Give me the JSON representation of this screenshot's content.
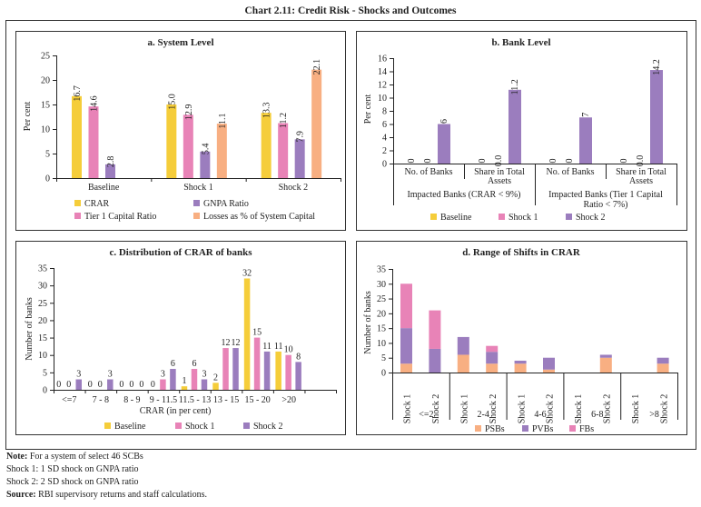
{
  "title": "Chart 2.11: Credit Risk - Shocks and Outcomes",
  "colors": {
    "Baseline": "#F5CD3A",
    "Shock 1": "#E883B7",
    "Shock 2": "#9B7DBE",
    "CRAR": "#F5CD3A",
    "Tier 1  Capital Ratio": "#E883B7",
    "GNPA Ratio": "#9B7DBE",
    "Losses as % of System Capital": "#F8AF82",
    "PSBs": "#F8AF82",
    "PVBs": "#9B7DBE",
    "FBs": "#E883B7"
  },
  "chart_data": [
    {
      "type": "bar",
      "title": "a. System Level",
      "ylabel": "Per cent",
      "xlabel": "",
      "ylim": [
        0,
        25
      ],
      "yticks": [
        "0",
        "5",
        "10",
        "15",
        "20",
        "25"
      ],
      "categories": [
        "Baseline",
        "Shock 1",
        "Shock 2"
      ],
      "series": [
        {
          "name": "CRAR",
          "values": [
            16.7,
            15.0,
            13.3
          ],
          "labels": [
            "16.7",
            "15.0",
            "13.3"
          ]
        },
        {
          "name": "Tier 1  Capital Ratio",
          "values": [
            14.6,
            12.9,
            11.2
          ],
          "labels": [
            "14.6",
            "12.9",
            "11.2"
          ]
        },
        {
          "name": "GNPA Ratio",
          "values": [
            2.8,
            5.4,
            7.9
          ],
          "labels": [
            "2.8",
            "5.4",
            "7.9"
          ]
        },
        {
          "name": "Losses as % of System Capital",
          "values": [
            null,
            11.1,
            22.1
          ],
          "labels": [
            null,
            "11.1",
            "22.1"
          ]
        }
      ],
      "legend": "bottom",
      "grid": false
    },
    {
      "type": "bar",
      "title": "b. Bank Level",
      "ylabel": "Per cent",
      "xlabel": "",
      "ylim": [
        0,
        16
      ],
      "yticks": [
        "0",
        "2",
        "4",
        "6",
        "8",
        "10",
        "12",
        "14",
        "16"
      ],
      "categories": [
        "No. of Banks",
        "Share in Total Assets",
        "No. of Banks",
        "Share in Total Assets"
      ],
      "groups": [
        "Impacted Banks (CRAR < 9%)",
        "Impacted Banks (Tier 1  Capital Ratio < 7%)"
      ],
      "series": [
        {
          "name": "Baseline",
          "values": [
            0,
            0,
            0,
            0
          ],
          "labels": [
            "0",
            "0",
            "0",
            "0"
          ]
        },
        {
          "name": "Shock 1",
          "values": [
            0,
            0.0,
            0,
            0.0
          ],
          "labels": [
            "0",
            "0.0",
            "0",
            "0.0"
          ]
        },
        {
          "name": "Shock 2",
          "values": [
            6,
            11.2,
            7,
            14.2
          ],
          "labels": [
            "6",
            "11.2",
            "7",
            "14.2"
          ]
        }
      ],
      "legend": "bottom",
      "grid": false
    },
    {
      "type": "bar",
      "title": "c. Distribution of CRAR of banks",
      "ylabel": "Number of banks",
      "xlabel": "CRAR (in per cent)",
      "ylim": [
        0,
        35
      ],
      "yticks": [
        "0",
        "5",
        "10",
        "15",
        "20",
        "25",
        "30",
        "35"
      ],
      "categories": [
        "<=7",
        "7 - 8",
        "8 - 9",
        "9 - 11.5",
        "11.5 - 13",
        "13 - 15",
        "15 - 20",
        ">20"
      ],
      "series": [
        {
          "name": "Baseline",
          "values": [
            0,
            0,
            0,
            0,
            1,
            2,
            32,
            11
          ],
          "labels": [
            "0",
            "0",
            "0",
            "0",
            "1",
            "2",
            "32",
            "11"
          ]
        },
        {
          "name": "Shock 1",
          "values": [
            0,
            0,
            0,
            3,
            6,
            12,
            15,
            10
          ],
          "labels": [
            "0",
            "0",
            "0",
            "3",
            "6",
            "12",
            "15",
            "10"
          ]
        },
        {
          "name": "Shock 2",
          "values": [
            3,
            3,
            0,
            6,
            3,
            12,
            11,
            8
          ],
          "labels": [
            "3",
            "3",
            "0",
            "6",
            "3",
            "12",
            "11",
            "8"
          ]
        }
      ],
      "legend": "bottom",
      "grid": false
    },
    {
      "type": "bar",
      "stacked": true,
      "title": "d. Range of Shifts in CRAR",
      "ylabel": "Number of banks",
      "xlabel": "",
      "ylim": [
        0,
        35
      ],
      "yticks": [
        "0",
        "5",
        "10",
        "15",
        "20",
        "25",
        "30",
        "35"
      ],
      "groups": [
        "<=2",
        "2-4",
        "4-6",
        "6-8",
        ">8"
      ],
      "categories": [
        "Shock 1",
        "Shock 2",
        "Shock 1",
        "Shock 2",
        "Shock 1",
        "Shock 2",
        "Shock 1",
        "Shock 2",
        "Shock 1",
        "Shock 2"
      ],
      "series": [
        {
          "name": "PSBs",
          "values": [
            3,
            0,
            6,
            3,
            3,
            1,
            0,
            5,
            0,
            3
          ]
        },
        {
          "name": "PVBs",
          "values": [
            12,
            8,
            6,
            4,
            1,
            4,
            0,
            1,
            0,
            2
          ]
        },
        {
          "name": "FBs",
          "values": [
            15,
            13,
            0,
            2,
            0,
            0,
            0,
            0,
            0,
            0
          ]
        }
      ],
      "legend": "bottom",
      "grid": false
    }
  ],
  "notes": {
    "note_label": "Note:",
    "note_text": " For a system of select 46 SCBs",
    "shock1": "Shock 1:  1 SD shock on GNPA ratio",
    "shock2": "Shock 2:  2 SD shock on GNPA ratio",
    "source_label": "Source:",
    "source_text": " RBI supervisory returns and staff calculations."
  }
}
